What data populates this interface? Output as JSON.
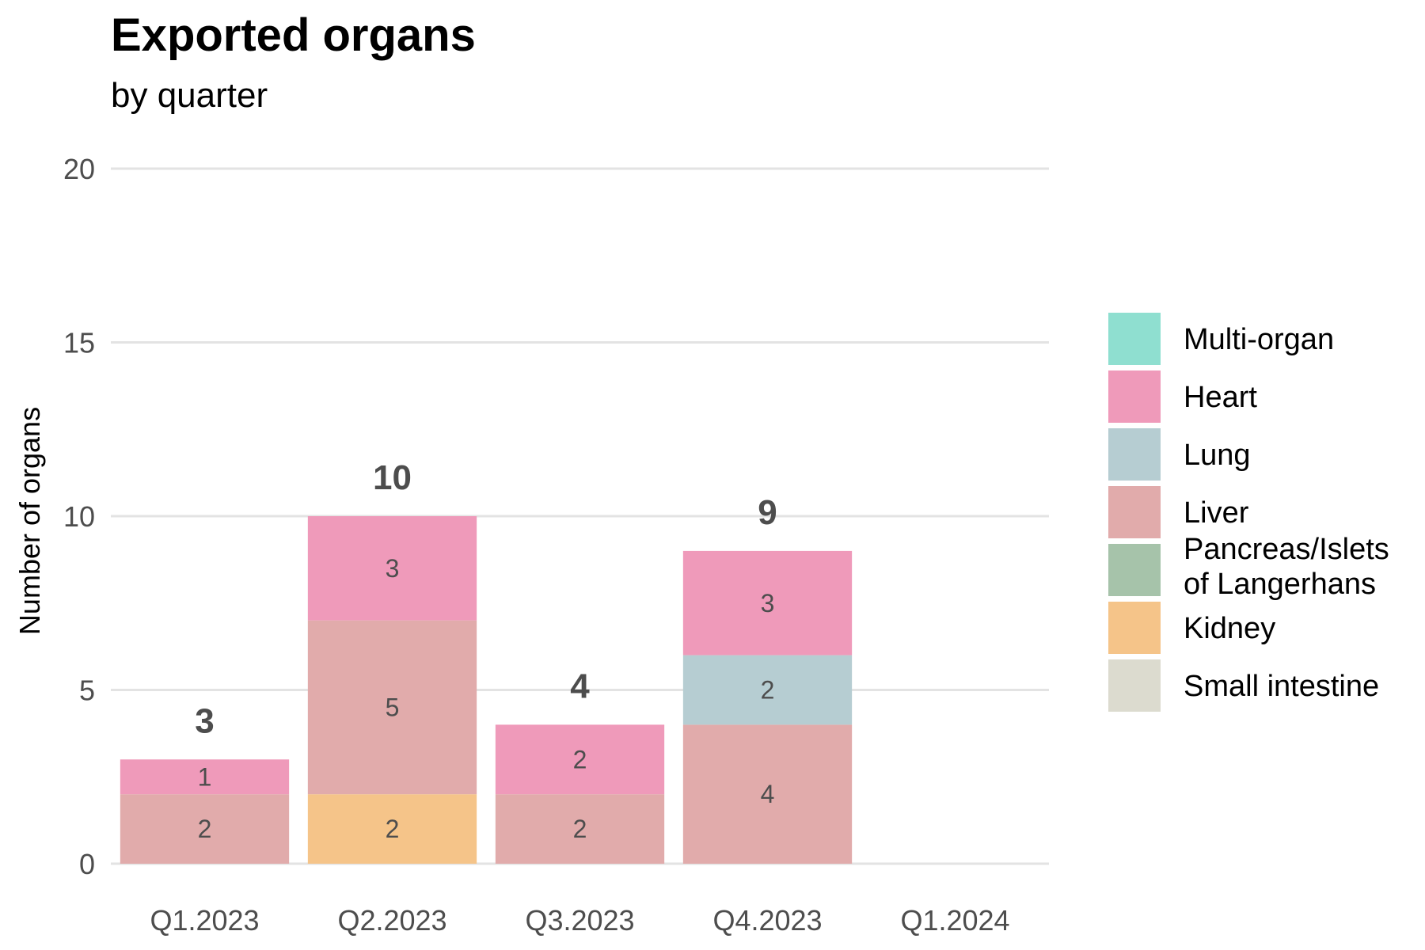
{
  "chart_data": {
    "type": "bar",
    "stacked": true,
    "title": "Exported organs",
    "subtitle": "by quarter",
    "xlabel": "",
    "ylabel": "Number of organs",
    "ylim": [
      0,
      20
    ],
    "yticks": [
      0,
      5,
      10,
      15,
      20
    ],
    "grid": "horizontal",
    "legend_position": "right",
    "categories": [
      "Q1.2023",
      "Q2.2023",
      "Q3.2023",
      "Q4.2023",
      "Q1.2024"
    ],
    "totals": [
      3,
      10,
      4,
      9,
      null
    ],
    "series": [
      {
        "name": "Multi-organ",
        "color": "#8fdfd0",
        "values": [
          0,
          0,
          0,
          0,
          0
        ]
      },
      {
        "name": "Heart",
        "color": "#ef9aba",
        "values": [
          1,
          3,
          2,
          3,
          0
        ]
      },
      {
        "name": "Lung",
        "color": "#b6cdd2",
        "values": [
          0,
          0,
          0,
          2,
          0
        ]
      },
      {
        "name": "Liver",
        "color": "#e1abab",
        "values": [
          2,
          5,
          2,
          4,
          0
        ]
      },
      {
        "name": "Pancreas/Islets of Langerhans",
        "color": "#a6c3aa",
        "values": [
          0,
          0,
          0,
          0,
          0
        ]
      },
      {
        "name": "Kidney",
        "color": "#f5c489",
        "values": [
          0,
          2,
          0,
          0,
          0
        ]
      },
      {
        "name": "Small intestine",
        "color": "#dcdbcf",
        "values": [
          0,
          0,
          0,
          0,
          0
        ]
      }
    ]
  }
}
